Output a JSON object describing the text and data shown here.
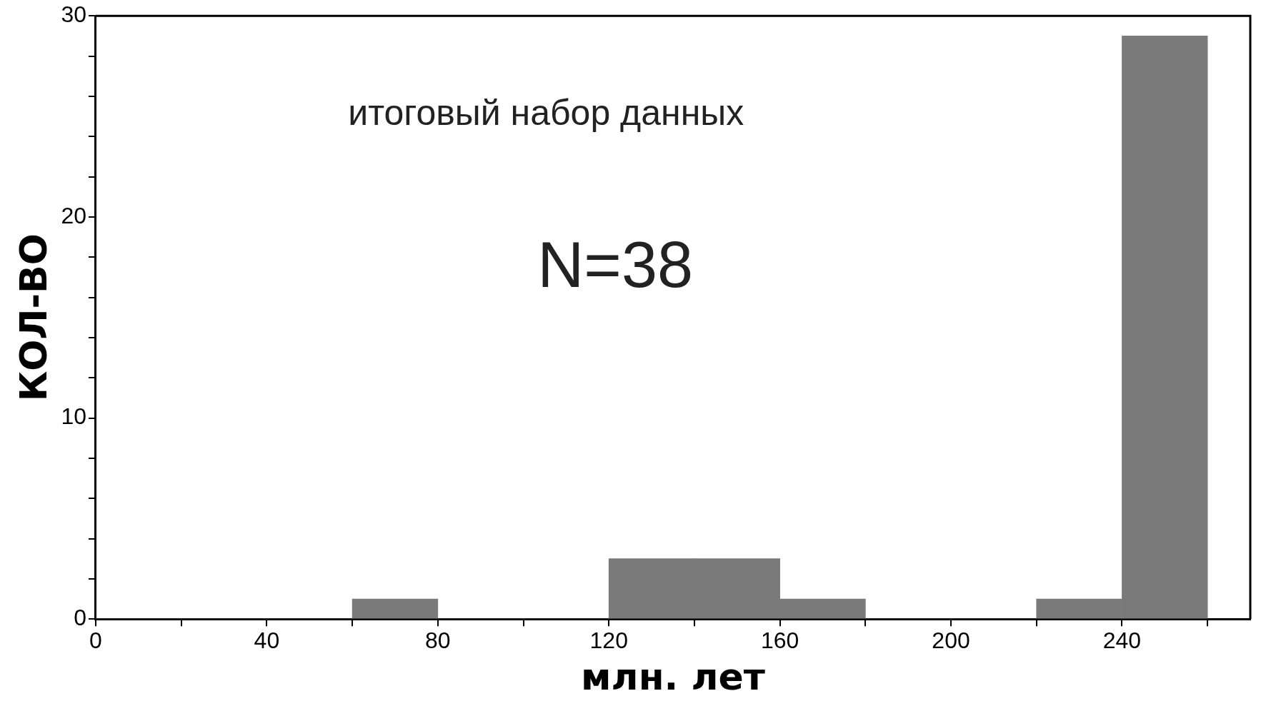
{
  "chart_data": {
    "type": "histogram",
    "xlabel": "млн. лет",
    "ylabel": "КОЛ-ВО",
    "annotations": [
      "итоговый набор данных",
      "N=38"
    ],
    "bins": [
      0,
      20,
      40,
      60,
      80,
      100,
      120,
      140,
      160,
      180,
      200,
      220,
      240,
      260
    ],
    "values": [
      0,
      0,
      0,
      1,
      0,
      0,
      3,
      3,
      1,
      0,
      0,
      1,
      29
    ],
    "color": "#7a7a7a",
    "xlim": [
      0,
      270
    ],
    "xticks": [
      0,
      {
        "value": 20,
        "label": null
      },
      40,
      {
        "value": 60,
        "label": null
      },
      80,
      {
        "value": 100,
        "label": null
      },
      120,
      {
        "value": 140,
        "label": null
      },
      160,
      {
        "value": 180,
        "label": null
      },
      200,
      {
        "value": 220,
        "label": null
      },
      240,
      {
        "value": 260,
        "label": null
      }
    ],
    "ylim": [
      0,
      30
    ],
    "yticks": [
      0,
      {
        "value": 2,
        "label": null
      },
      {
        "value": 4,
        "label": null
      },
      {
        "value": 6,
        "label": null
      },
      {
        "value": 8,
        "label": null
      },
      10,
      {
        "value": 12,
        "label": null
      },
      {
        "value": 14,
        "label": null
      },
      {
        "value": 16,
        "label": null
      },
      {
        "value": 18,
        "label": null
      },
      20,
      {
        "value": 22,
        "label": null
      },
      {
        "value": 24,
        "label": null
      },
      {
        "value": 26,
        "label": null
      },
      {
        "value": 28,
        "label": null
      },
      30
    ],
    "grid": false,
    "legend": false
  }
}
